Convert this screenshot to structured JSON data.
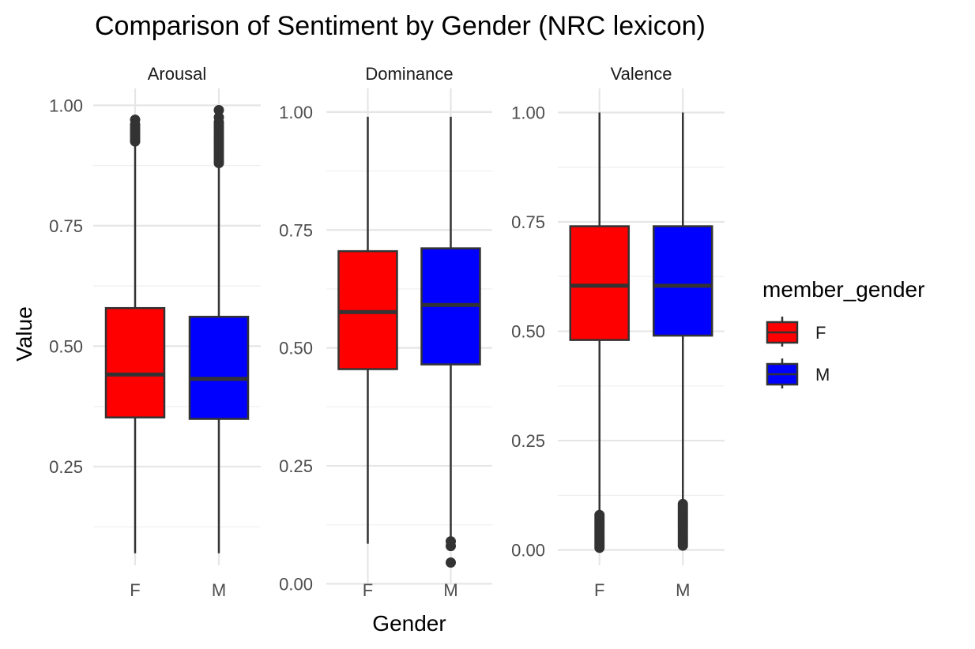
{
  "chart_data": {
    "type": "boxplot",
    "title": "Comparison of Sentiment by Gender (NRC lexicon)",
    "xlabel": "Gender",
    "ylabel": "Value",
    "legend": {
      "title": "member_gender",
      "placement": "right",
      "entries": [
        {
          "label": "F",
          "color": "#ff0000"
        },
        {
          "label": "M",
          "color": "#0000ff"
        }
      ]
    },
    "categories": [
      "F",
      "M"
    ],
    "grid": true,
    "panels": [
      {
        "name": "Arousal",
        "ylim": [
          0.045,
          1.035
        ],
        "yticks": [
          0.25,
          0.5,
          0.75,
          1.0
        ],
        "ytick_labels": [
          "0.25",
          "0.50",
          "0.75",
          "1.00"
        ],
        "minor_ticks": [
          0.125,
          0.375,
          0.625,
          0.875
        ],
        "boxes": [
          {
            "group": "F",
            "whisker_low": 0.07,
            "q1": 0.352,
            "median": 0.441,
            "q3": 0.579,
            "whisker_high": 0.92,
            "outliers": [
              0.925,
              0.93,
              0.935,
              0.94,
              0.945,
              0.95,
              0.955,
              0.96,
              0.97
            ]
          },
          {
            "group": "M",
            "whisker_low": 0.07,
            "q1": 0.349,
            "median": 0.432,
            "q3": 0.561,
            "whisker_high": 0.875,
            "outliers": [
              0.88,
              0.885,
              0.89,
              0.895,
              0.9,
              0.905,
              0.91,
              0.915,
              0.92,
              0.925,
              0.93,
              0.935,
              0.94,
              0.945,
              0.95,
              0.955,
              0.96,
              0.965,
              0.975,
              0.99
            ]
          }
        ]
      },
      {
        "name": "Dominance",
        "ylim": [
          -0.001,
          1.05
        ],
        "yticks": [
          0.0,
          0.25,
          0.5,
          0.75,
          1.0
        ],
        "ytick_labels": [
          "0.00",
          "0.25",
          "0.50",
          "0.75",
          "1.00"
        ],
        "minor_ticks": [
          0.125,
          0.375,
          0.625,
          0.875
        ],
        "boxes": [
          {
            "group": "F",
            "whisker_low": 0.085,
            "q1": 0.455,
            "median": 0.576,
            "q3": 0.705,
            "whisker_high": 0.99,
            "outliers": []
          },
          {
            "group": "M",
            "whisker_low": 0.09,
            "q1": 0.465,
            "median": 0.591,
            "q3": 0.711,
            "whisker_high": 0.99,
            "outliers": [
              0.045,
              0.08,
              0.09
            ]
          }
        ]
      },
      {
        "name": "Valence",
        "ylim": [
          -0.035,
          1.055
        ],
        "yticks": [
          0.0,
          0.25,
          0.5,
          0.75,
          1.0
        ],
        "ytick_labels": [
          "0.00",
          "0.25",
          "0.50",
          "0.75",
          "1.00"
        ],
        "minor_ticks": [
          0.125,
          0.375,
          0.625,
          0.875
        ],
        "boxes": [
          {
            "group": "F",
            "whisker_low": 0.085,
            "q1": 0.48,
            "median": 0.604,
            "q3": 0.74,
            "whisker_high": 1.0,
            "outliers": [
              0.005,
              0.01,
              0.015,
              0.02,
              0.025,
              0.03,
              0.035,
              0.04,
              0.045,
              0.05,
              0.055,
              0.06,
              0.065,
              0.07,
              0.075,
              0.08
            ]
          },
          {
            "group": "M",
            "whisker_low": 0.11,
            "q1": 0.49,
            "median": 0.604,
            "q3": 0.74,
            "whisker_high": 1.0,
            "outliers": [
              0.01,
              0.015,
              0.02,
              0.025,
              0.03,
              0.035,
              0.04,
              0.045,
              0.05,
              0.055,
              0.06,
              0.065,
              0.07,
              0.075,
              0.08,
              0.085,
              0.09,
              0.095,
              0.1,
              0.105
            ]
          }
        ]
      }
    ]
  }
}
